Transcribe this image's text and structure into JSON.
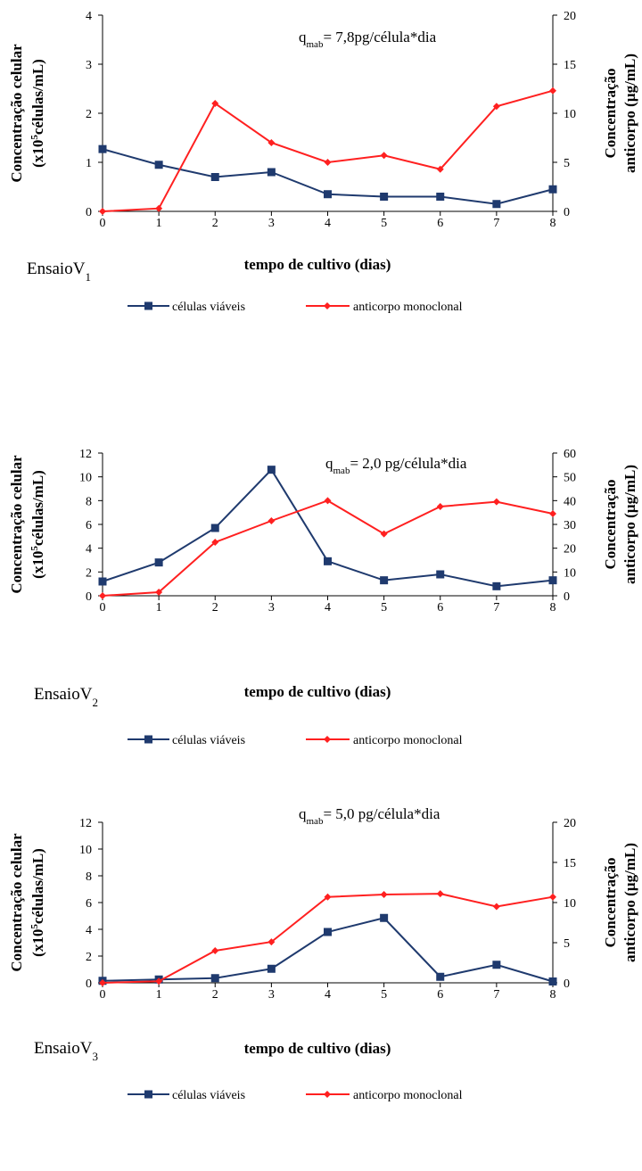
{
  "colors": {
    "cells": "#1f3a6e",
    "antibody": "#ff2020"
  },
  "chart_data": [
    {
      "type": "line",
      "panel_label": "EnsaioV",
      "panel_subscript": "1",
      "q_sym": "q",
      "q_sub": "mab",
      "q_rest": "=  7,8pg/célula*dia",
      "xlabel": "tempo de cultivo (dias)",
      "ylabel_left_line1": "Concentração celular",
      "ylabel_left_line2_a": "(x10",
      "ylabel_left_line2_sup": "5",
      "ylabel_left_line2_b": "células/mL)",
      "ylabel_right_line1": "Concentração",
      "ylabel_right_line2": "anticorpo (µg/mL)",
      "x": [
        0,
        1,
        2,
        3,
        4,
        5,
        6,
        7,
        8
      ],
      "ylim_left": [
        0,
        4
      ],
      "yticks_left": [
        0,
        1,
        2,
        3,
        4
      ],
      "ylim_right": [
        0,
        20
      ],
      "yticks_right": [
        0,
        5,
        10,
        15,
        20
      ],
      "series": [
        {
          "name": "células viáveis",
          "axis": "left",
          "marker": "square",
          "values": [
            1.27,
            0.95,
            0.7,
            0.8,
            0.35,
            0.3,
            0.3,
            0.15,
            0.45
          ]
        },
        {
          "name": "anticorpo monoclonal",
          "axis": "right",
          "marker": "diamond",
          "values": [
            0,
            0.3,
            11,
            7,
            5,
            5.7,
            4.3,
            10.7,
            12.3
          ]
        }
      ]
    },
    {
      "type": "line",
      "panel_label": "EnsaioV",
      "panel_subscript": "2",
      "q_sym": "q",
      "q_sub": "mab",
      "q_rest": "=  2,0 pg/célula*dia",
      "xlabel": "tempo de cultivo (dias)",
      "ylabel_left_line1": "Concentração celular",
      "ylabel_left_line2_a": "(x10",
      "ylabel_left_line2_sup": "5",
      "ylabel_left_line2_b": "células/mL)",
      "ylabel_right_line1": "Concentração",
      "ylabel_right_line2": "anticorpo (µg/mL)",
      "x": [
        0,
        1,
        2,
        3,
        4,
        5,
        6,
        7,
        8
      ],
      "ylim_left": [
        0,
        12
      ],
      "yticks_left": [
        0,
        2,
        4,
        6,
        8,
        10,
        12
      ],
      "ylim_right": [
        0,
        60
      ],
      "yticks_right": [
        0,
        10,
        20,
        30,
        40,
        50,
        60
      ],
      "series": [
        {
          "name": "células viáveis",
          "axis": "left",
          "marker": "square",
          "values": [
            1.2,
            2.8,
            5.7,
            10.6,
            2.9,
            1.3,
            1.8,
            0.8,
            1.3
          ]
        },
        {
          "name": "anticorpo monoclonal",
          "axis": "right",
          "marker": "diamond",
          "values": [
            0,
            1.5,
            22.5,
            31.5,
            40,
            26,
            37.5,
            39.5,
            34.5
          ]
        }
      ]
    },
    {
      "type": "line",
      "panel_label": "EnsaioV",
      "panel_subscript": "3",
      "q_sym": "q",
      "q_sub": "mab",
      "q_rest": "=  5,0 pg/célula*dia",
      "xlabel": "tempo de cultivo (dias)",
      "ylabel_left_line1": "Concentração celular",
      "ylabel_left_line2_a": "(x10",
      "ylabel_left_line2_sup": "5",
      "ylabel_left_line2_b": "células/mL)",
      "ylabel_right_line1": "Concentração",
      "ylabel_right_line2": "anticorpo (µg/mL)",
      "x": [
        0,
        1,
        2,
        3,
        4,
        5,
        6,
        7,
        8
      ],
      "ylim_left": [
        0,
        12
      ],
      "yticks_left": [
        0,
        2,
        4,
        6,
        8,
        10,
        12
      ],
      "ylim_right": [
        0,
        20
      ],
      "yticks_right": [
        0,
        5,
        10,
        15,
        20
      ],
      "series": [
        {
          "name": "células viáveis",
          "axis": "left",
          "marker": "square",
          "values": [
            0.15,
            0.25,
            0.35,
            1.05,
            3.8,
            4.85,
            0.45,
            1.35,
            0.1
          ]
        },
        {
          "name": "anticorpo monoclonal",
          "axis": "right",
          "marker": "diamond",
          "values": [
            0,
            0.2,
            4,
            5.1,
            10.7,
            11,
            11.1,
            9.5,
            10.7
          ]
        }
      ]
    }
  ]
}
